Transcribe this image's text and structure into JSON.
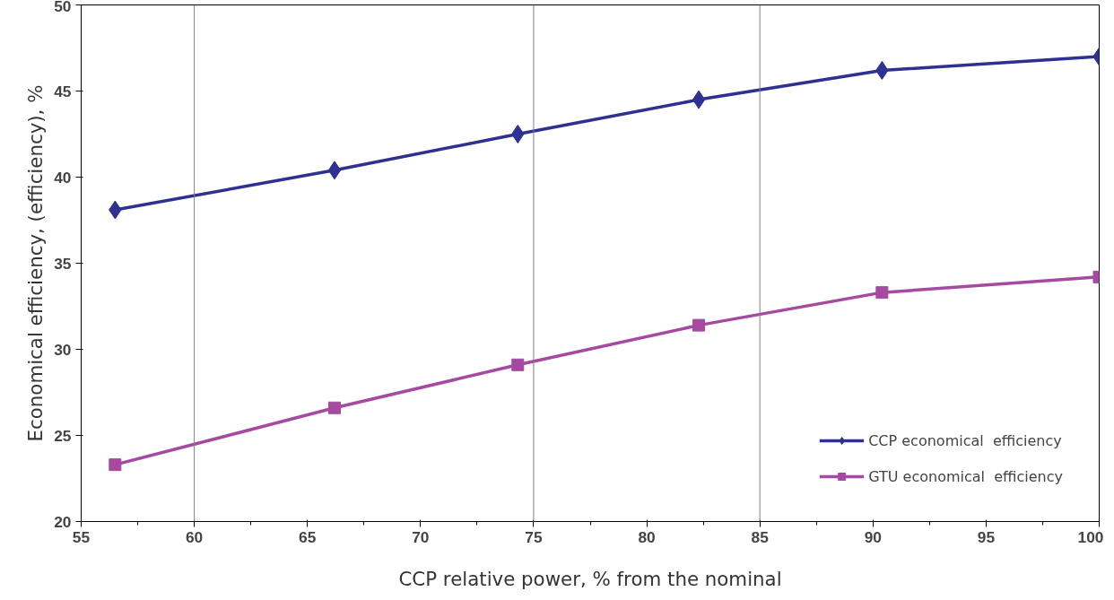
{
  "chart_data": {
    "type": "line",
    "xlabel": "CCP relative power, % from the nominal",
    "ylabel": "Economical efficiency, (efficiency), %",
    "xlim": [
      55,
      100
    ],
    "xticks": [
      55,
      60,
      65,
      70,
      75,
      80,
      85,
      90,
      95,
      100
    ],
    "ylim": [
      20,
      50
    ],
    "yticks": [
      20,
      25,
      30,
      35,
      40,
      45,
      50
    ],
    "x": [
      56.5,
      66.2,
      74.3,
      82.3,
      90.4,
      100
    ],
    "series": [
      {
        "name": "CCP economical  efficiency",
        "color": "#2e3192",
        "marker": "diamond",
        "values": [
          38.1,
          40.4,
          42.5,
          44.5,
          46.2,
          47.0
        ]
      },
      {
        "name": "GTU economical  efficiency",
        "color": "#a54aa0",
        "marker": "square",
        "values": [
          23.3,
          26.6,
          29.1,
          31.4,
          33.3,
          34.2
        ]
      }
    ],
    "ref_lines": [
      {
        "axis": "x",
        "value": 60,
        "color": "#808080"
      },
      {
        "axis": "x",
        "value": 75,
        "color": "#808080"
      },
      {
        "axis": "x",
        "value": 85,
        "color": "#808080"
      }
    ],
    "legend": "bottom right",
    "grid": false,
    "line_style": "solid"
  }
}
